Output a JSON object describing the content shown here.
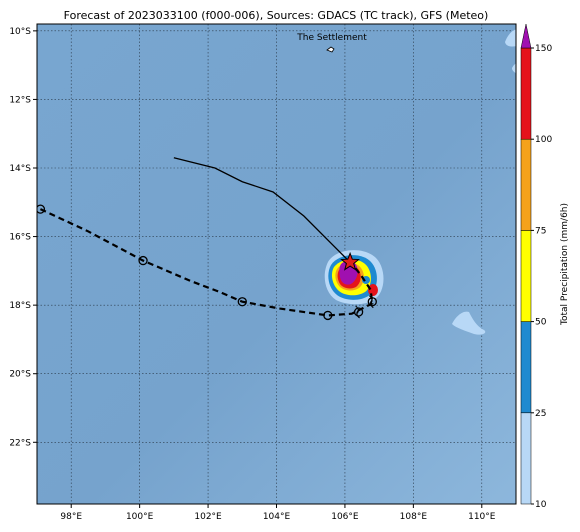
{
  "title": "Forecast of 2023033100 (f000-006), Sources: GDACS (TC track), GFS (Meteo)",
  "place_label": "The Settlement",
  "colors": {
    "ocean": "#7aa8d2",
    "grid": "#2a3a4a",
    "observed_track": "#000000",
    "forecast_track": "#000000",
    "star": "#e0201a"
  },
  "x_axis": {
    "range": [
      97.0,
      111.0
    ],
    "ticks": [
      {
        "value": 98,
        "label": "98°E"
      },
      {
        "value": 100,
        "label": "100°E"
      },
      {
        "value": 102,
        "label": "102°E"
      },
      {
        "value": 104,
        "label": "104°E"
      },
      {
        "value": 106,
        "label": "106°E"
      },
      {
        "value": 108,
        "label": "108°E"
      },
      {
        "value": 110,
        "label": "110°E"
      }
    ]
  },
  "y_axis": {
    "range": [
      -23.8,
      -9.8
    ],
    "ticks": [
      {
        "value": -10,
        "label": "10°S"
      },
      {
        "value": -12,
        "label": "12°S"
      },
      {
        "value": -14,
        "label": "14°S"
      },
      {
        "value": -16,
        "label": "16°S"
      },
      {
        "value": -18,
        "label": "18°S"
      },
      {
        "value": -20,
        "label": "20°S"
      },
      {
        "value": -22,
        "label": "22°S"
      }
    ]
  },
  "colorbar": {
    "label": "Total Precipitation (mm/6h)",
    "ticks": [
      "10",
      "25",
      "50",
      "75",
      "100",
      "150"
    ],
    "colors": [
      "#b8d8f6",
      "#1f8ad0",
      "#ffff00",
      "#f5a21b",
      "#e5131b",
      "#a010b0"
    ]
  },
  "observed_track": [
    [
      101.0,
      -13.7
    ],
    [
      102.2,
      -14.0
    ],
    [
      103.0,
      -14.4
    ],
    [
      103.9,
      -14.7
    ],
    [
      104.8,
      -15.4
    ],
    [
      105.6,
      -16.2
    ],
    [
      106.1,
      -16.7
    ]
  ],
  "forecast_track": [
    [
      97.1,
      -15.2
    ],
    [
      98.5,
      -15.85
    ],
    [
      100.1,
      -16.7
    ],
    [
      101.5,
      -17.3
    ],
    [
      102.3,
      -17.6
    ],
    [
      103.0,
      -17.9
    ],
    [
      104.1,
      -18.1
    ],
    [
      105.5,
      -18.3
    ],
    [
      106.2,
      -18.25
    ],
    [
      106.8,
      -17.95
    ],
    [
      106.75,
      -17.55
    ],
    [
      106.45,
      -17.1
    ],
    [
      106.2,
      -16.8
    ]
  ],
  "track_markers": [
    [
      97.1,
      -15.2
    ],
    [
      100.1,
      -16.7
    ],
    [
      103.0,
      -17.9
    ],
    [
      105.5,
      -18.3
    ],
    [
      106.4,
      -18.2
    ],
    [
      106.8,
      -17.9
    ]
  ],
  "current_position": [
    106.15,
    -16.75
  ]
}
